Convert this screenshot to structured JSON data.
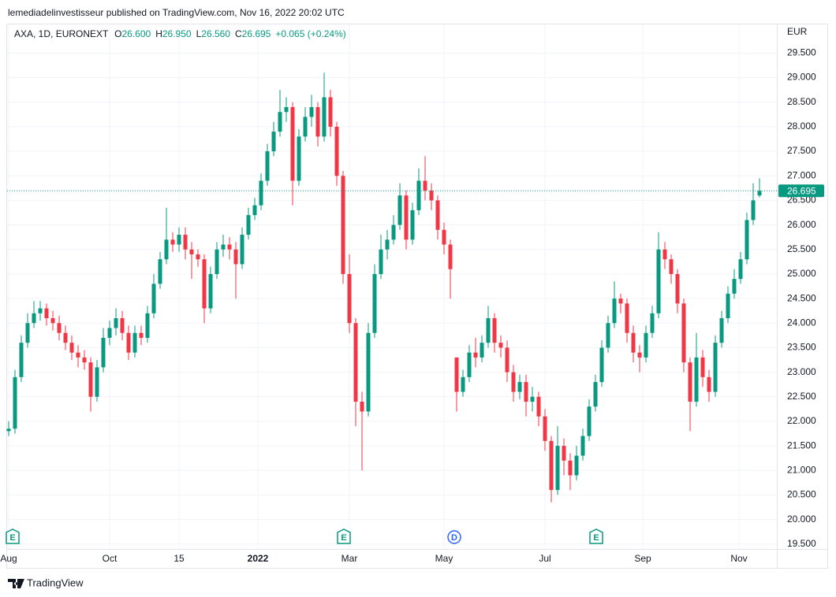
{
  "chart_data": {
    "type": "candlestick",
    "attribution": "lemediadelinvestisseur published on TradingView.com, Nov 16, 2022 20:02 UTC",
    "legend_header": {
      "symbol": "AXA, 1D, EURONEXT",
      "fields": [
        {
          "key": "O",
          "value": "26.600"
        },
        {
          "key": "H",
          "value": "26.950"
        },
        {
          "key": "L",
          "value": "26.560"
        },
        {
          "key": "C",
          "value": "26.695"
        }
      ],
      "change": "+0.065 (+0.24%)"
    },
    "currency": "EUR",
    "up_color": "#089981",
    "down_color": "#f23645",
    "grid": true,
    "last_price": {
      "value": 26.695,
      "label": "26.695"
    },
    "events": [
      "E",
      "E",
      "D",
      "E"
    ],
    "footer": "TradingView",
    "xlim": [
      0,
      119
    ],
    "xticks": [
      {
        "value": 0,
        "label": "Aug"
      },
      {
        "value": 16,
        "label": "Oct"
      },
      {
        "value": 27,
        "label": "15"
      },
      {
        "value": 39.5,
        "label": "2022"
      },
      {
        "value": 54,
        "label": "Mar"
      },
      {
        "value": 69,
        "label": "May"
      },
      {
        "value": 85,
        "label": "Jul"
      },
      {
        "value": 100.5,
        "label": "Sep"
      },
      {
        "value": 115.75,
        "label": "Nov"
      }
    ],
    "ylim": [
      19.4,
      30.1
    ],
    "yticks": [
      {
        "value": 19.5,
        "label": "19.500"
      },
      {
        "value": 20,
        "label": "20.000"
      },
      {
        "value": 20.5,
        "label": "20.500"
      },
      {
        "value": 21,
        "label": "21.000"
      },
      {
        "value": 21.5,
        "label": "21.500"
      },
      {
        "value": 22,
        "label": "22.000"
      },
      {
        "value": 22.5,
        "label": "22.500"
      },
      {
        "value": 23,
        "label": "23.000"
      },
      {
        "value": 23.5,
        "label": "23.500"
      },
      {
        "value": 24,
        "label": "24.000"
      },
      {
        "value": 24.5,
        "label": "24.500"
      },
      {
        "value": 25,
        "label": "25.000"
      },
      {
        "value": 25.5,
        "label": "25.500"
      },
      {
        "value": 26,
        "label": "26.000"
      },
      {
        "value": 26.5,
        "label": "26.500"
      },
      {
        "value": 27,
        "label": "27.000"
      },
      {
        "value": 27.5,
        "label": "27.500"
      },
      {
        "value": 28,
        "label": "28.000"
      },
      {
        "value": 28.5,
        "label": "28.500"
      },
      {
        "value": 29,
        "label": "29.000"
      },
      {
        "value": 29.5,
        "label": "29.500"
      }
    ],
    "open": [
      21.8,
      21.85,
      22.9,
      23.6,
      24.0,
      24.2,
      24.3,
      24.1,
      24.0,
      23.8,
      23.6,
      23.4,
      23.3,
      23.2,
      22.5,
      23.1,
      23.7,
      23.9,
      24.1,
      23.8,
      23.4,
      23.8,
      23.7,
      24.2,
      24.8,
      25.3,
      25.7,
      25.6,
      25.8,
      25.5,
      25.4,
      25.3,
      24.3,
      25.0,
      25.5,
      25.6,
      25.5,
      25.2,
      25.8,
      26.2,
      26.4,
      26.9,
      27.5,
      27.9,
      28.3,
      28.4,
      26.9,
      27.8,
      28.2,
      28.4,
      27.8,
      28.6,
      28.0,
      27.0,
      25.0,
      24.0,
      22.4,
      22.2,
      23.8,
      25.0,
      25.5,
      25.7,
      26.0,
      26.6,
      25.7,
      26.3,
      26.9,
      26.7,
      26.5,
      25.9,
      25.6,
      23.3,
      22.6,
      22.9,
      23.4,
      23.3,
      23.6,
      24.1,
      23.6,
      23.5,
      23.0,
      22.6,
      22.8,
      22.4,
      22.5,
      22.1,
      21.6,
      20.6,
      21.5,
      21.2,
      20.9,
      21.3,
      21.7,
      22.3,
      22.8,
      23.5,
      24.0,
      24.5,
      24.4,
      23.8,
      23.4,
      23.3,
      23.8,
      24.2,
      25.5,
      25.3,
      25.0,
      24.4,
      23.2,
      22.4,
      23.3,
      22.9,
      22.6,
      23.6,
      24.1,
      24.6,
      24.9,
      25.3,
      26.1,
      26.6
    ],
    "high": [
      22.0,
      23.05,
      23.75,
      24.2,
      24.45,
      24.45,
      24.4,
      24.25,
      24.15,
      23.95,
      23.75,
      23.55,
      23.45,
      23.3,
      23.25,
      23.9,
      24.05,
      24.3,
      24.25,
      23.95,
      23.95,
      23.95,
      24.35,
      25.0,
      25.45,
      26.35,
      25.85,
      25.95,
      25.95,
      25.65,
      25.5,
      25.4,
      25.15,
      25.65,
      25.8,
      25.75,
      25.65,
      25.95,
      26.35,
      26.55,
      27.05,
      27.65,
      28.1,
      28.75,
      28.6,
      28.5,
      27.95,
      28.4,
      28.65,
      28.5,
      29.1,
      28.75,
      28.1,
      27.1,
      25.4,
      24.1,
      22.6,
      24.0,
      25.2,
      25.8,
      25.9,
      26.2,
      26.85,
      26.7,
      26.45,
      27.15,
      27.4,
      26.85,
      26.6,
      26.05,
      25.7,
      23.3,
      23.05,
      23.55,
      23.7,
      23.75,
      24.35,
      24.2,
      23.75,
      23.65,
      23.15,
      22.95,
      22.95,
      22.7,
      22.6,
      22.25,
      21.7,
      21.9,
      21.65,
      21.35,
      21.5,
      21.85,
      22.45,
      22.95,
      23.65,
      24.15,
      24.85,
      24.6,
      24.5,
      23.95,
      23.55,
      23.95,
      24.35,
      25.85,
      25.65,
      25.4,
      25.1,
      24.5,
      23.3,
      23.8,
      23.45,
      23.05,
      23.75,
      24.25,
      24.75,
      25.1,
      25.45,
      26.25,
      26.85,
      26.95
    ],
    "low": [
      21.7,
      21.75,
      22.8,
      23.5,
      23.9,
      24.05,
      23.95,
      23.85,
      23.65,
      23.45,
      23.25,
      23.1,
      23.05,
      22.2,
      22.4,
      23.0,
      23.55,
      23.75,
      23.65,
      23.25,
      23.3,
      23.55,
      23.6,
      24.1,
      24.7,
      25.2,
      25.45,
      25.45,
      25.3,
      24.9,
      25.15,
      24.0,
      24.2,
      24.9,
      25.35,
      25.3,
      24.5,
      25.1,
      25.7,
      26.1,
      26.3,
      26.8,
      27.4,
      27.8,
      28.1,
      26.4,
      26.8,
      27.7,
      28.0,
      27.6,
      27.7,
      27.8,
      26.8,
      24.8,
      23.8,
      21.9,
      21.0,
      22.1,
      23.7,
      24.9,
      25.3,
      25.6,
      25.9,
      25.5,
      25.6,
      26.2,
      26.5,
      26.3,
      25.7,
      25.4,
      24.5,
      22.2,
      22.5,
      22.8,
      23.1,
      23.2,
      23.5,
      23.4,
      23.3,
      22.8,
      22.4,
      22.45,
      22.1,
      22.2,
      21.9,
      21.4,
      20.35,
      20.5,
      20.9,
      20.6,
      20.8,
      21.2,
      21.6,
      22.2,
      22.7,
      23.4,
      23.9,
      24.2,
      23.6,
      23.2,
      23.0,
      23.2,
      23.7,
      24.1,
      25.1,
      24.8,
      24.2,
      23.0,
      21.8,
      22.3,
      22.7,
      22.4,
      22.5,
      23.5,
      24.0,
      24.5,
      24.8,
      25.2,
      26.0,
      26.56
    ],
    "close": [
      21.85,
      22.9,
      23.6,
      24.0,
      24.2,
      24.3,
      24.1,
      24.0,
      23.8,
      23.6,
      23.4,
      23.3,
      23.2,
      22.5,
      23.1,
      23.7,
      23.9,
      24.1,
      23.8,
      23.4,
      23.8,
      23.7,
      24.2,
      24.8,
      25.3,
      25.7,
      25.6,
      25.8,
      25.5,
      25.4,
      25.3,
      24.3,
      25.0,
      25.5,
      25.6,
      25.5,
      25.2,
      25.8,
      26.2,
      26.4,
      26.9,
      27.5,
      27.9,
      28.3,
      28.4,
      26.9,
      27.8,
      28.2,
      28.4,
      27.8,
      28.6,
      28.0,
      27.0,
      25.0,
      24.0,
      22.4,
      22.2,
      23.8,
      25.0,
      25.5,
      25.7,
      26.0,
      26.6,
      25.7,
      26.3,
      26.9,
      26.7,
      26.5,
      25.9,
      25.6,
      25.1,
      22.6,
      22.9,
      23.4,
      23.3,
      23.6,
      24.1,
      23.6,
      23.5,
      23.0,
      22.6,
      22.8,
      22.4,
      22.5,
      22.1,
      21.6,
      20.6,
      21.5,
      21.2,
      20.9,
      21.3,
      21.7,
      22.3,
      22.8,
      23.5,
      24.0,
      24.5,
      24.4,
      23.8,
      23.4,
      23.3,
      23.8,
      24.2,
      25.5,
      25.3,
      25.0,
      24.4,
      23.2,
      22.4,
      23.3,
      22.9,
      22.6,
      23.6,
      24.1,
      24.6,
      24.9,
      25.3,
      26.1,
      26.5,
      26.695
    ]
  }
}
